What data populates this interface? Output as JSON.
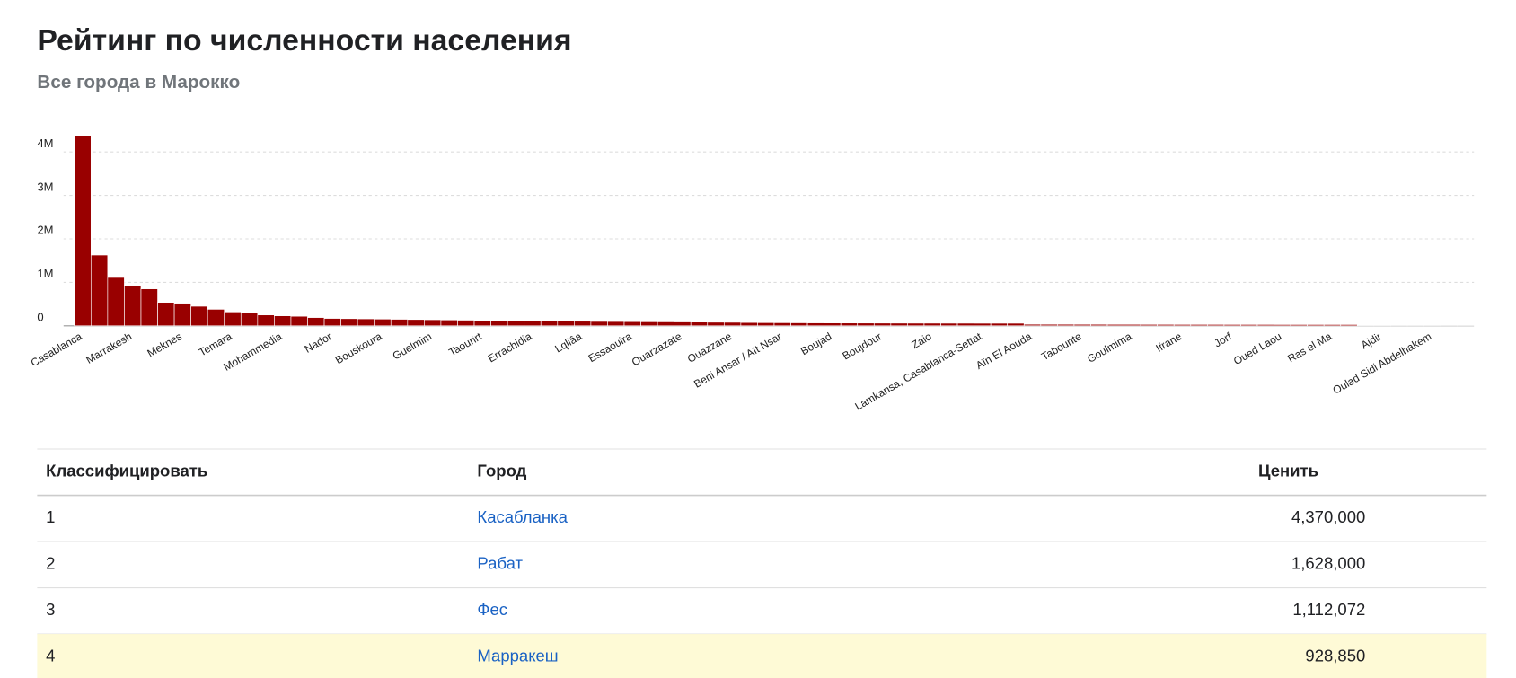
{
  "chart_data": {
    "type": "bar",
    "title": "Рейтинг по численности населения",
    "subtitle": "Все города в Марокко",
    "color": "#990000",
    "grid": true,
    "ylim": [
      0,
      4500000
    ],
    "yticks": [
      {
        "value": 0,
        "label": "0"
      },
      {
        "value": 1000000,
        "label": "1M"
      },
      {
        "value": 2000000,
        "label": "2M"
      },
      {
        "value": 3000000,
        "label": "3M"
      },
      {
        "value": 4000000,
        "label": "4M"
      }
    ],
    "categories": [
      "Casablanca",
      null,
      null,
      "Marrakesh",
      null,
      null,
      "Meknes",
      null,
      null,
      "Temara",
      null,
      null,
      "Mohammedia",
      null,
      null,
      "Nador",
      null,
      null,
      "Bouskoura",
      null,
      null,
      "Guelmim",
      null,
      null,
      "Taourirt",
      null,
      null,
      "Errachidia",
      null,
      null,
      "Lqliâa",
      null,
      null,
      "Essaouira",
      null,
      null,
      "Ouarzazate",
      null,
      null,
      "Ouazzane",
      null,
      null,
      "Beni Ansar / Aït Nsar",
      null,
      null,
      "Boujad",
      null,
      null,
      "Boujdour",
      null,
      null,
      "Zaio",
      null,
      null,
      "Lamkansa, Casablanca-Settat",
      null,
      null,
      "Aïn El Aouda",
      null,
      null,
      "Tabounte",
      null,
      null,
      "Goulmima",
      null,
      null,
      "Ifrane",
      null,
      null,
      "Jorf",
      null,
      null,
      "Oued Laou",
      null,
      null,
      "Ras el Ma",
      null,
      null,
      "Ajdir",
      null,
      null,
      "Oulad Sidi Abdelhakem",
      null,
      null
    ],
    "values": [
      4370000,
      1628000,
      1112072,
      928850,
      850000,
      540000,
      520000,
      450000,
      380000,
      320000,
      310000,
      250000,
      230000,
      220000,
      190000,
      170000,
      165000,
      160000,
      155000,
      150000,
      145000,
      140000,
      135000,
      130000,
      125000,
      120000,
      118000,
      115000,
      112000,
      110000,
      105000,
      100000,
      98000,
      95000,
      92000,
      90000,
      88000,
      85000,
      82000,
      80000,
      75000,
      72000,
      70000,
      68000,
      66000,
      65000,
      64000,
      63000,
      62000,
      61000,
      60000,
      60000,
      59000,
      59000,
      58000,
      58000,
      58000,
      35000,
      34000,
      34000,
      33000,
      33000,
      32000,
      32000,
      31000,
      31000,
      30000,
      30000,
      30000,
      29000,
      29000,
      29000,
      28000,
      28000,
      28000,
      28000,
      28000,
      5000,
      5000,
      4000,
      4000,
      4000,
      3000,
      3000
    ]
  },
  "table": {
    "header": [
      "Классифицировать",
      "Город",
      "Ценить"
    ],
    "rows": [
      [
        "1",
        "Касабланка",
        "4,370,000"
      ],
      [
        "2",
        "Рабат",
        "1,628,000"
      ],
      [
        "3",
        "Фес",
        "1,112,072"
      ],
      [
        "4",
        "Марракеш",
        "928,850"
      ]
    ]
  }
}
